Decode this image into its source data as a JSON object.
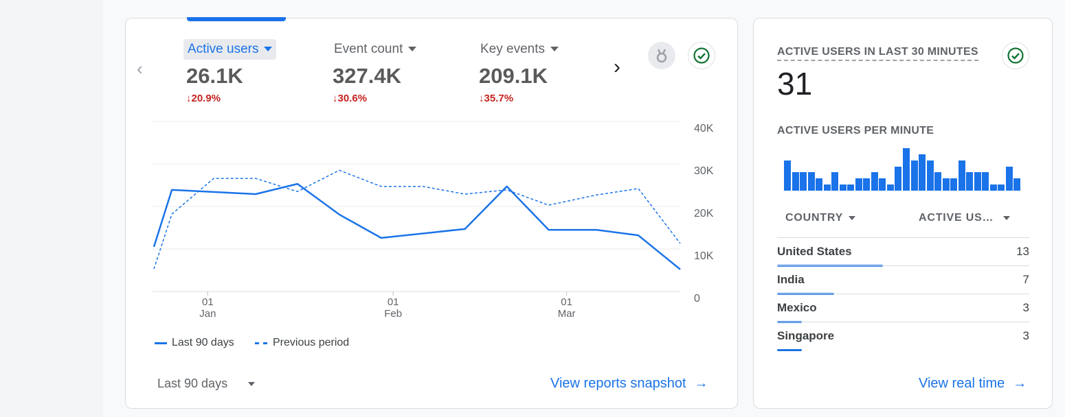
{
  "overview": {
    "metrics": [
      {
        "label": "Active users",
        "value": "26.1K",
        "change": "20.9%",
        "selected": true
      },
      {
        "label": "Event count",
        "value": "327.4K",
        "change": "30.6%",
        "selected": false
      },
      {
        "label": "Key events",
        "value": "209.1K",
        "change": "35.7%",
        "selected": false
      }
    ],
    "date_range": "Last 90 days",
    "link": "View reports snapshot"
  },
  "chart_data": {
    "type": "line",
    "x": [
      "2023-12-23",
      "2023-12-26",
      "2024-01-02",
      "2024-01-09",
      "2024-01-16",
      "2024-01-23",
      "2024-01-30",
      "2024-02-06",
      "2024-02-13",
      "2024-02-20",
      "2024-02-27",
      "2024-03-06",
      "2024-03-13",
      "2024-03-20"
    ],
    "series": [
      {
        "name": "Last 90 days",
        "style": "solid",
        "values": [
          10500,
          23900,
          null,
          22900,
          25300,
          18100,
          12600,
          null,
          14700,
          24700,
          14500,
          14500,
          13200,
          5200
        ]
      },
      {
        "name": "Previous period",
        "style": "dashed",
        "values": [
          5300,
          18200,
          26600,
          26600,
          23500,
          28500,
          24700,
          24700,
          22900,
          23900,
          20300,
          22700,
          24200,
          11300
        ]
      }
    ],
    "x_ticks": [
      {
        "date": "2024-01-01",
        "label": "01",
        "sub": "Jan"
      },
      {
        "date": "2024-02-01",
        "label": "01",
        "sub": "Feb"
      },
      {
        "date": "2024-03-01",
        "label": "01",
        "sub": "Mar"
      }
    ],
    "y_ticks": [
      "0",
      "10K",
      "20K",
      "30K",
      "40K"
    ],
    "ylim": [
      0,
      40000
    ],
    "grid": true,
    "legend": "bottom-left",
    "color": "#1a73e8"
  },
  "realtime": {
    "title": "ACTIVE USERS IN LAST 30 MINUTES",
    "value": "31",
    "per_minute_title": "ACTIVE USERS PER MINUTE",
    "per_minute": [
      5,
      3,
      3,
      3,
      2,
      1,
      3,
      1,
      1,
      2,
      2,
      3,
      2,
      1,
      4,
      7,
      5,
      6,
      5,
      3,
      2,
      2,
      5,
      3,
      3,
      3,
      1,
      1,
      4,
      2
    ],
    "col_country": "COUNTRY",
    "col_users": "ACTIVE US…",
    "total": 31,
    "rows": [
      {
        "country": "United States",
        "users": 13
      },
      {
        "country": "India",
        "users": 7
      },
      {
        "country": "Mexico",
        "users": 3
      },
      {
        "country": "Singapore",
        "users": 3
      }
    ],
    "link": "View real time"
  }
}
